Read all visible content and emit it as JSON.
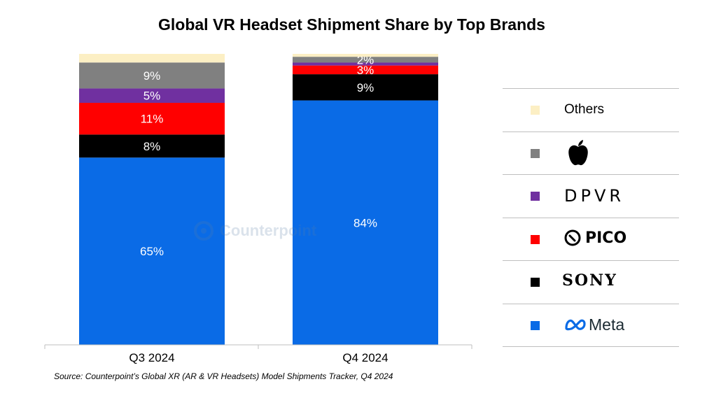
{
  "chart_data": {
    "type": "bar",
    "stacked": true,
    "title": "Global VR Headset Shipment Share by Top Brands",
    "categories": [
      "Q3 2024",
      "Q4 2024"
    ],
    "ylim": [
      0,
      100
    ],
    "series": [
      {
        "name": "Meta",
        "values": [
          65,
          84
        ],
        "labels": [
          "65%",
          "84%"
        ],
        "color": "#0a6be6"
      },
      {
        "name": "SONY",
        "values": [
          8,
          9
        ],
        "labels": [
          "8%",
          "9%"
        ],
        "color": "#000000"
      },
      {
        "name": "PICO",
        "values": [
          11,
          3
        ],
        "labels": [
          "11%",
          "3%"
        ],
        "color": "#ff0000"
      },
      {
        "name": "DPVR",
        "values": [
          5,
          1
        ],
        "labels": [
          "5%",
          ""
        ],
        "color": "#7030a0"
      },
      {
        "name": "Apple",
        "values": [
          9,
          2
        ],
        "labels": [
          "9%",
          "2%"
        ],
        "color": "#808080"
      },
      {
        "name": "Others",
        "values": [
          3,
          1
        ],
        "labels": [
          "",
          ""
        ],
        "color": "#fcefc4"
      }
    ],
    "legend": "right"
  },
  "title": "Global VR Headset Shipment Share by Top Brands",
  "legend": {
    "others_label": "Others",
    "apple_icon": "apple-logo-icon",
    "dpvr_label": "DPVR",
    "pico_label": "PICO",
    "sony_label": "SONY",
    "meta_label": "Meta"
  },
  "watermark": "Counterpoint",
  "source": "Source: Counterpoint’s Global XR (AR & VR Headsets) Model Shipments Tracker, Q4 2024"
}
